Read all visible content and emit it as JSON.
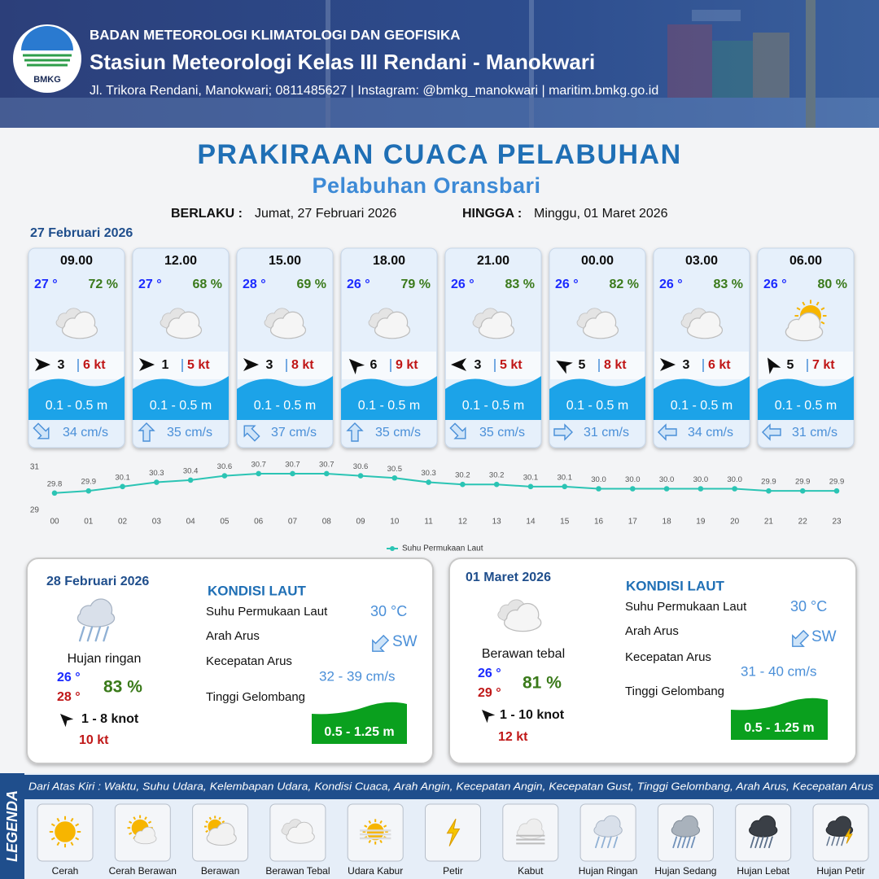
{
  "header": {
    "logo_text": "BMKG",
    "organization": "BADAN METEOROLOGI KLIMATOLOGI DAN GEOFISIKA",
    "station": "Stasiun Meteorologi Kelas III Rendani - Manokwari",
    "contact": "Jl. Trikora Rendani, Manokwari; 0811485627 | Instagram: @bmkg_manokwari | maritim.bmkg.go.id"
  },
  "title": "PRAKIRAAN CUACA PELABUHAN",
  "subtitle": "Pelabuhan Oransbari",
  "validity": {
    "from_label": "BERLAKU :",
    "from": "Jumat, 27 Februari 2026",
    "to_label": "HINGGA :",
    "to": "Minggu, 01 Maret 2026"
  },
  "day1": {
    "date": "27 Februari 2026",
    "cards": [
      {
        "time": "09.00",
        "temp": "27 °",
        "humidity": "72 %",
        "wind": "3",
        "gust": "6 kt",
        "wave": "0.1 - 0.5 m",
        "current": "34 cm/s"
      },
      {
        "time": "12.00",
        "temp": "27 °",
        "humidity": "68 %",
        "wind": "1",
        "gust": "5 kt",
        "wave": "0.1 - 0.5 m",
        "current": "35 cm/s"
      },
      {
        "time": "15.00",
        "temp": "28 °",
        "humidity": "69 %",
        "wind": "3",
        "gust": "8 kt",
        "wave": "0.1 - 0.5 m",
        "current": "37 cm/s"
      },
      {
        "time": "18.00",
        "temp": "26 °",
        "humidity": "79 %",
        "wind": "6",
        "gust": "9 kt",
        "wave": "0.1 - 0.5 m",
        "current": "35 cm/s"
      },
      {
        "time": "21.00",
        "temp": "26 °",
        "humidity": "83 %",
        "wind": "3",
        "gust": "5 kt",
        "wave": "0.1 - 0.5 m",
        "current": "35 cm/s"
      },
      {
        "time": "00.00",
        "temp": "26 °",
        "humidity": "82 %",
        "wind": "5",
        "gust": "8 kt",
        "wave": "0.1 - 0.5 m",
        "current": "31 cm/s"
      },
      {
        "time": "03.00",
        "temp": "26 °",
        "humidity": "83 %",
        "wind": "3",
        "gust": "6 kt",
        "wave": "0.1 - 0.5 m",
        "current": "34 cm/s"
      },
      {
        "time": "06.00",
        "temp": "26 °",
        "humidity": "80 %",
        "wind": "5",
        "gust": "7 kt",
        "wave": "0.1 - 0.5 m",
        "current": "31 cm/s"
      }
    ]
  },
  "chart_data": {
    "type": "line",
    "categories": [
      "00",
      "01",
      "02",
      "03",
      "04",
      "05",
      "06",
      "07",
      "08",
      "09",
      "10",
      "11",
      "12",
      "13",
      "14",
      "15",
      "16",
      "17",
      "18",
      "19",
      "20",
      "21",
      "22",
      "23"
    ],
    "series": [
      {
        "name": "Suhu Permukaan Laut",
        "color": "#2bc4b4",
        "values": [
          29.8,
          29.9,
          30.1,
          30.3,
          30.4,
          30.6,
          30.7,
          30.7,
          30.7,
          30.6,
          30.5,
          30.3,
          30.2,
          30.2,
          30.1,
          30.1,
          30.0,
          30.0,
          30.0,
          30.0,
          30.0,
          29.9,
          29.9,
          29.9
        ],
        "value_labels": [
          "29.8",
          "29.9",
          "30.1",
          "30.3",
          "30.4",
          "30.6",
          "30.7",
          "30.7",
          "30.7",
          "30.6",
          "30.5",
          "30.3",
          "30.2",
          "30.2",
          "30.1",
          "30.1",
          "30.0",
          "30.0",
          "30.0",
          "30.0",
          "30.0",
          "29.9",
          "29.9",
          "29.9"
        ]
      }
    ],
    "ylim": [
      29,
      31
    ],
    "yticks": [
      29,
      31
    ],
    "legend": "bottom"
  },
  "days": [
    {
      "date": "28 Februari 2026",
      "condition": "Hujan ringan",
      "temp_min": "26 °",
      "temp_max": "28 °",
      "humidity": "83 %",
      "wind": "1 - 8 knot",
      "gust": "10 kt",
      "sea_title": "KONDISI LAUT",
      "sst_label": "Suhu Permukaan Laut",
      "sst": "30 °C",
      "direction_label": "Arah Arus",
      "direction": "SW",
      "speed_label": "Kecepatan Arus",
      "speed": "32  - 39 cm/s",
      "wave_label": "Tinggi Gelombang",
      "wave": "0.5 - 1.25 m"
    },
    {
      "date": "01 Maret 2026",
      "condition": "Berawan tebal",
      "temp_min": "26 °",
      "temp_max": "29 °",
      "humidity": "81 %",
      "wind": "1 - 10 knot",
      "gust": "12 kt",
      "sea_title": "KONDISI LAUT",
      "sst_label": "Suhu Permukaan Laut",
      "sst": "30 °C",
      "direction_label": "Arah Arus",
      "direction": "SW",
      "speed_label": "Kecepatan Arus",
      "speed": "31 - 40 cm/s",
      "wave_label": "Tinggi Gelombang",
      "wave": "0.5 - 1.25 m"
    }
  ],
  "legend": {
    "title": "LEGENDA",
    "description": "Dari Atas Kiri : Waktu, Suhu Udara, Kelembapan Udara, Kondisi Cuaca, Arah Angin, Kecepatan Angin, Kecepatan Gust, Tinggi Gelombang, Arah Arus, Kecepatan Arus",
    "items": [
      "Cerah",
      "Cerah Berawan",
      "Berawan",
      "Berawan Tebal",
      "Udara Kabur",
      "Petir",
      "Kabut",
      "Hujan Ringan",
      "Hujan Sedang",
      "Hujan Lebat",
      "Hujan Petir"
    ]
  }
}
